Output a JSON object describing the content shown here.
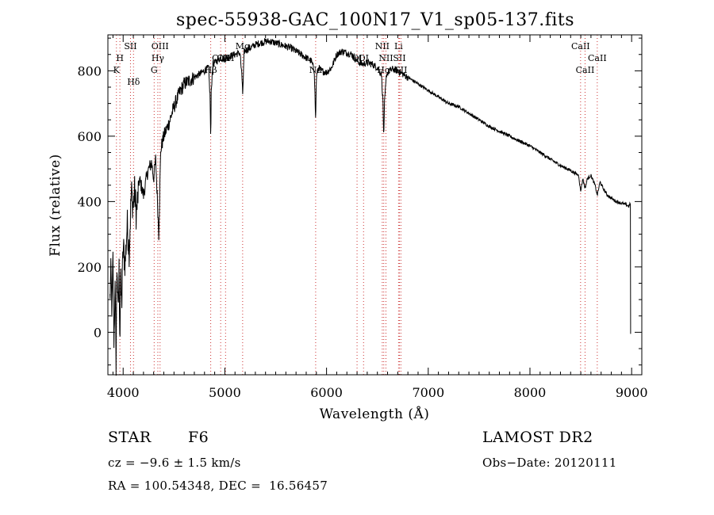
{
  "chart_data": {
    "type": "line",
    "title": "spec-55938-GAC_100N17_V1_sp05-137.fits",
    "xlabel": "Wavelength (Å)",
    "ylabel": "Flux (relative)",
    "xlim": [
      3850,
      9100
    ],
    "ylim": [
      -130,
      910
    ],
    "xticks": [
      4000,
      5000,
      6000,
      7000,
      8000,
      9000
    ],
    "yticks": [
      0,
      200,
      400,
      600,
      800
    ],
    "grid": false,
    "series": [
      {
        "x": [
          3870,
          3880,
          3890,
          3900,
          3910,
          3920,
          3930,
          3940,
          3950,
          3960,
          3968,
          3975,
          3985,
          4000,
          4020,
          4040,
          4060,
          4080,
          4101,
          4110,
          4130,
          4160,
          4200,
          4240,
          4280,
          4300,
          4320,
          4340,
          4350,
          4370,
          4400,
          4450,
          4500,
          4550,
          4600,
          4650,
          4700,
          4750,
          4800,
          4840,
          4855,
          4861,
          4866,
          4880,
          4920,
          4960,
          5000,
          5050,
          5100,
          5150,
          5172,
          5176,
          5183,
          5190,
          5250,
          5300,
          5350,
          5400,
          5450,
          5500,
          5550,
          5600,
          5650,
          5700,
          5750,
          5800,
          5850,
          5880,
          5893,
          5900,
          5920,
          5950,
          6000,
          6050,
          6100,
          6150,
          6200,
          6250,
          6300,
          6350,
          6400,
          6450,
          6500,
          6540,
          6555,
          6563,
          6570,
          6590,
          6620,
          6650,
          6700,
          6750,
          6800,
          6850,
          6900,
          6950,
          7000,
          7100,
          7200,
          7300,
          7400,
          7500,
          7600,
          7700,
          7800,
          7900,
          8000,
          8100,
          8200,
          8300,
          8400,
          8480,
          8498,
          8520,
          8542,
          8565,
          8600,
          8640,
          8662,
          8690,
          8720,
          8760,
          8800,
          8850,
          8900,
          8950,
          8970,
          8980,
          8990
        ],
        "y": [
          100,
          180,
          60,
          220,
          -40,
          150,
          -90,
          230,
          40,
          190,
          -20,
          170,
          80,
          260,
          210,
          330,
          250,
          430,
          380,
          440,
          360,
          470,
          420,
          490,
          520,
          470,
          530,
          380,
          300,
          560,
          600,
          640,
          690,
          730,
          760,
          770,
          780,
          790,
          800,
          810,
          720,
          580,
          730,
          820,
          830,
          840,
          835,
          845,
          850,
          855,
          760,
          720,
          790,
          860,
          870,
          880,
          885,
          890,
          890,
          885,
          880,
          875,
          870,
          860,
          850,
          840,
          830,
          800,
          640,
          780,
          810,
          800,
          795,
          810,
          850,
          860,
          855,
          850,
          830,
          820,
          825,
          820,
          810,
          790,
          700,
          590,
          700,
          790,
          800,
          805,
          800,
          790,
          780,
          770,
          760,
          750,
          740,
          720,
          700,
          690,
          670,
          650,
          630,
          615,
          600,
          585,
          570,
          550,
          530,
          510,
          495,
          480,
          430,
          470,
          440,
          470,
          480,
          450,
          420,
          460,
          440,
          420,
          410,
          400,
          395,
          390,
          385,
          390,
          395
        ]
      }
    ],
    "line_markers": [
      {
        "label": "K",
        "x": 3934,
        "row": 2
      },
      {
        "label": "H",
        "x": 3968,
        "row": 1
      },
      {
        "label": "SII",
        "x": 4072,
        "row": 0
      },
      {
        "label": "Hδ",
        "x": 4102,
        "row": 3
      },
      {
        "label": "OIII",
        "x": 4363,
        "row": 0
      },
      {
        "label": "Hγ",
        "x": 4341,
        "row": 1
      },
      {
        "label": "G",
        "x": 4305,
        "row": 2
      },
      {
        "label": "Hβ",
        "x": 4861,
        "row": 2
      },
      {
        "label": "OIII",
        "x": 4959,
        "row": 1
      },
      {
        "label": "OIII",
        "x": 5007,
        "row": 1
      },
      {
        "label": "Mg",
        "x": 5175,
        "row": 0
      },
      {
        "label": "Na",
        "x": 5893,
        "row": 2
      },
      {
        "label": "OI",
        "x": 6300,
        "row": 1
      },
      {
        "label": "OI",
        "x": 6364,
        "row": 1
      },
      {
        "label": "NII",
        "x": 6548,
        "row": 0
      },
      {
        "label": "Hα",
        "x": 6563,
        "row": 2
      },
      {
        "label": "NII",
        "x": 6584,
        "row": 1
      },
      {
        "label": "Li",
        "x": 6708,
        "row": 0
      },
      {
        "label": "SII",
        "x": 6717,
        "row": 1
      },
      {
        "label": "SII",
        "x": 6731,
        "row": 2
      },
      {
        "label": "CaII",
        "x": 8498,
        "row": 0
      },
      {
        "label": "CaII",
        "x": 8542,
        "row": 2
      },
      {
        "label": "CaII",
        "x": 8662,
        "row": 1
      }
    ]
  },
  "info": {
    "object_class": "STAR",
    "subclass": "F6",
    "survey": "LAMOST DR2",
    "cz": "cz = −9.6 ± 1.5 km/s",
    "obs_date": "Obs−Date: 20120111",
    "coords": "RA = 100.54348, DEC =  16.56457"
  }
}
